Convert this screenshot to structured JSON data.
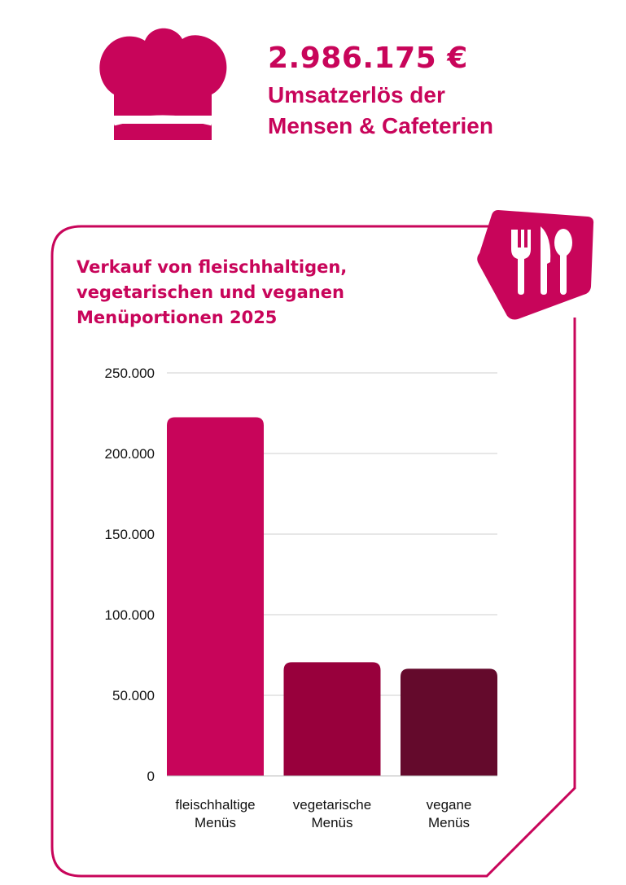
{
  "header": {
    "amount": "2.986.175 €",
    "subtitle_line1": "Umsatzerlös der",
    "subtitle_line2": "Mensen & Cafeterien"
  },
  "colors": {
    "brand": "#c8055a",
    "bar1": "#c8055a",
    "bar2": "#98003c",
    "bar3": "#640a2c"
  },
  "icons": [
    "chef-hat-icon",
    "cutlery-icon"
  ],
  "chart_data": {
    "type": "bar",
    "title": "Verkauf von fleischhaltigen, vegetarischen und veganen Menüportionen 2025",
    "title_lines": [
      "Verkauf von fleischhaltigen,",
      "vegetarischen und veganen",
      "Menüportionen 2025"
    ],
    "categories": [
      "fleischhaltige Menüs",
      "vegetarische Menüs",
      "vegane Menüs"
    ],
    "category_lines": [
      [
        "fleischhaltige",
        "Menüs"
      ],
      [
        "vegetarische",
        "Menüs"
      ],
      [
        "vegane",
        "Menüs"
      ]
    ],
    "values": [
      222500,
      70500,
      66500
    ],
    "ylim": [
      0,
      250000
    ],
    "yticks": [
      0,
      50000,
      100000,
      150000,
      200000,
      250000
    ],
    "ytick_labels": [
      "0",
      "50.000",
      "100.000",
      "150.000",
      "200.000",
      "250.000"
    ],
    "grid": true,
    "legend": "none"
  }
}
